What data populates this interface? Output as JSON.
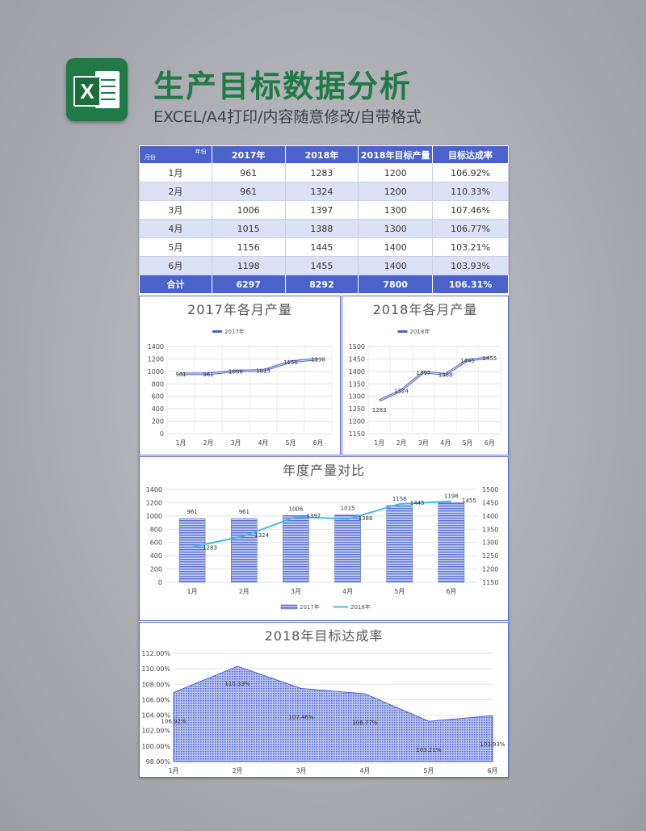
{
  "header": {
    "title": "生产目标数据分析",
    "subtitle": "EXCEL/A4打印/内容随意修改/自带格式",
    "logo_letter": "X"
  },
  "colors": {
    "accent": "#4a62c9",
    "brand_green": "#1f7a45",
    "line_2018": "#45b8e6"
  },
  "table": {
    "corner_top": "年份",
    "corner_bottom": "月份",
    "headers": [
      "2017年",
      "2018年",
      "2018年目标产量",
      "目标达成率"
    ],
    "rows": [
      [
        "1月",
        "961",
        "1283",
        "1200",
        "106.92%"
      ],
      [
        "2月",
        "961",
        "1324",
        "1200",
        "110.33%"
      ],
      [
        "3月",
        "1006",
        "1397",
        "1300",
        "107.46%"
      ],
      [
        "4月",
        "1015",
        "1388",
        "1300",
        "106.77%"
      ],
      [
        "5月",
        "1156",
        "1445",
        "1400",
        "103.21%"
      ],
      [
        "6月",
        "1198",
        "1455",
        "1400",
        "103.93%"
      ]
    ],
    "total": [
      "合计",
      "6297",
      "8292",
      "7800",
      "106.31%"
    ]
  },
  "chart_data": [
    {
      "type": "line",
      "title": "2017年各月产量",
      "legend": [
        "2017年"
      ],
      "categories": [
        "1月",
        "2月",
        "3月",
        "4月",
        "5月",
        "6月"
      ],
      "series": [
        {
          "name": "2017年",
          "values": [
            961,
            961,
            1006,
            1015,
            1156,
            1198
          ]
        }
      ],
      "ylim": [
        0,
        1400
      ],
      "yticks": [
        0,
        200,
        400,
        600,
        800,
        1000,
        1200,
        1400
      ]
    },
    {
      "type": "line",
      "title": "2018年各月产量",
      "legend": [
        "2018年"
      ],
      "categories": [
        "1月",
        "2月",
        "3月",
        "4月",
        "5月",
        "6月"
      ],
      "series": [
        {
          "name": "2018年",
          "values": [
            1283,
            1324,
            1397,
            1388,
            1445,
            1455
          ]
        }
      ],
      "ylim": [
        1150,
        1500
      ],
      "yticks": [
        1150,
        1200,
        1250,
        1300,
        1350,
        1400,
        1450,
        1500
      ]
    },
    {
      "type": "bar",
      "title": "年度产量对比",
      "legend": [
        "2017年",
        "2018年"
      ],
      "categories": [
        "1月",
        "2月",
        "3月",
        "4月",
        "5月",
        "6月"
      ],
      "series": [
        {
          "name": "2017年",
          "type": "bar",
          "values": [
            961,
            961,
            1006,
            1015,
            1156,
            1198
          ]
        },
        {
          "name": "2018年",
          "type": "line",
          "axis": "secondary",
          "values": [
            1283,
            1324,
            1397,
            1388,
            1445,
            1455
          ]
        }
      ],
      "ylim": [
        0,
        1400
      ],
      "yticks": [
        0,
        200,
        400,
        600,
        800,
        1000,
        1200,
        1400
      ],
      "y2lim": [
        1150,
        1500
      ],
      "y2ticks": [
        1150,
        1200,
        1250,
        1300,
        1350,
        1400,
        1450,
        1500
      ]
    },
    {
      "type": "area",
      "title": "2018年目标达成率",
      "categories": [
        "1月",
        "2月",
        "3月",
        "4月",
        "5月",
        "6月"
      ],
      "series": [
        {
          "name": "目标达成率",
          "values": [
            106.92,
            110.33,
            107.46,
            106.77,
            103.21,
            103.93
          ]
        }
      ],
      "labels": [
        "106.92%",
        "110.33%",
        "107.46%",
        "106.77%",
        "103.21%",
        "103.93%"
      ],
      "ylim": [
        98,
        112
      ],
      "yticks": [
        "98.00%",
        "100.00%",
        "102.00%",
        "104.00%",
        "106.00%",
        "108.00%",
        "110.00%",
        "112.00%"
      ]
    }
  ]
}
